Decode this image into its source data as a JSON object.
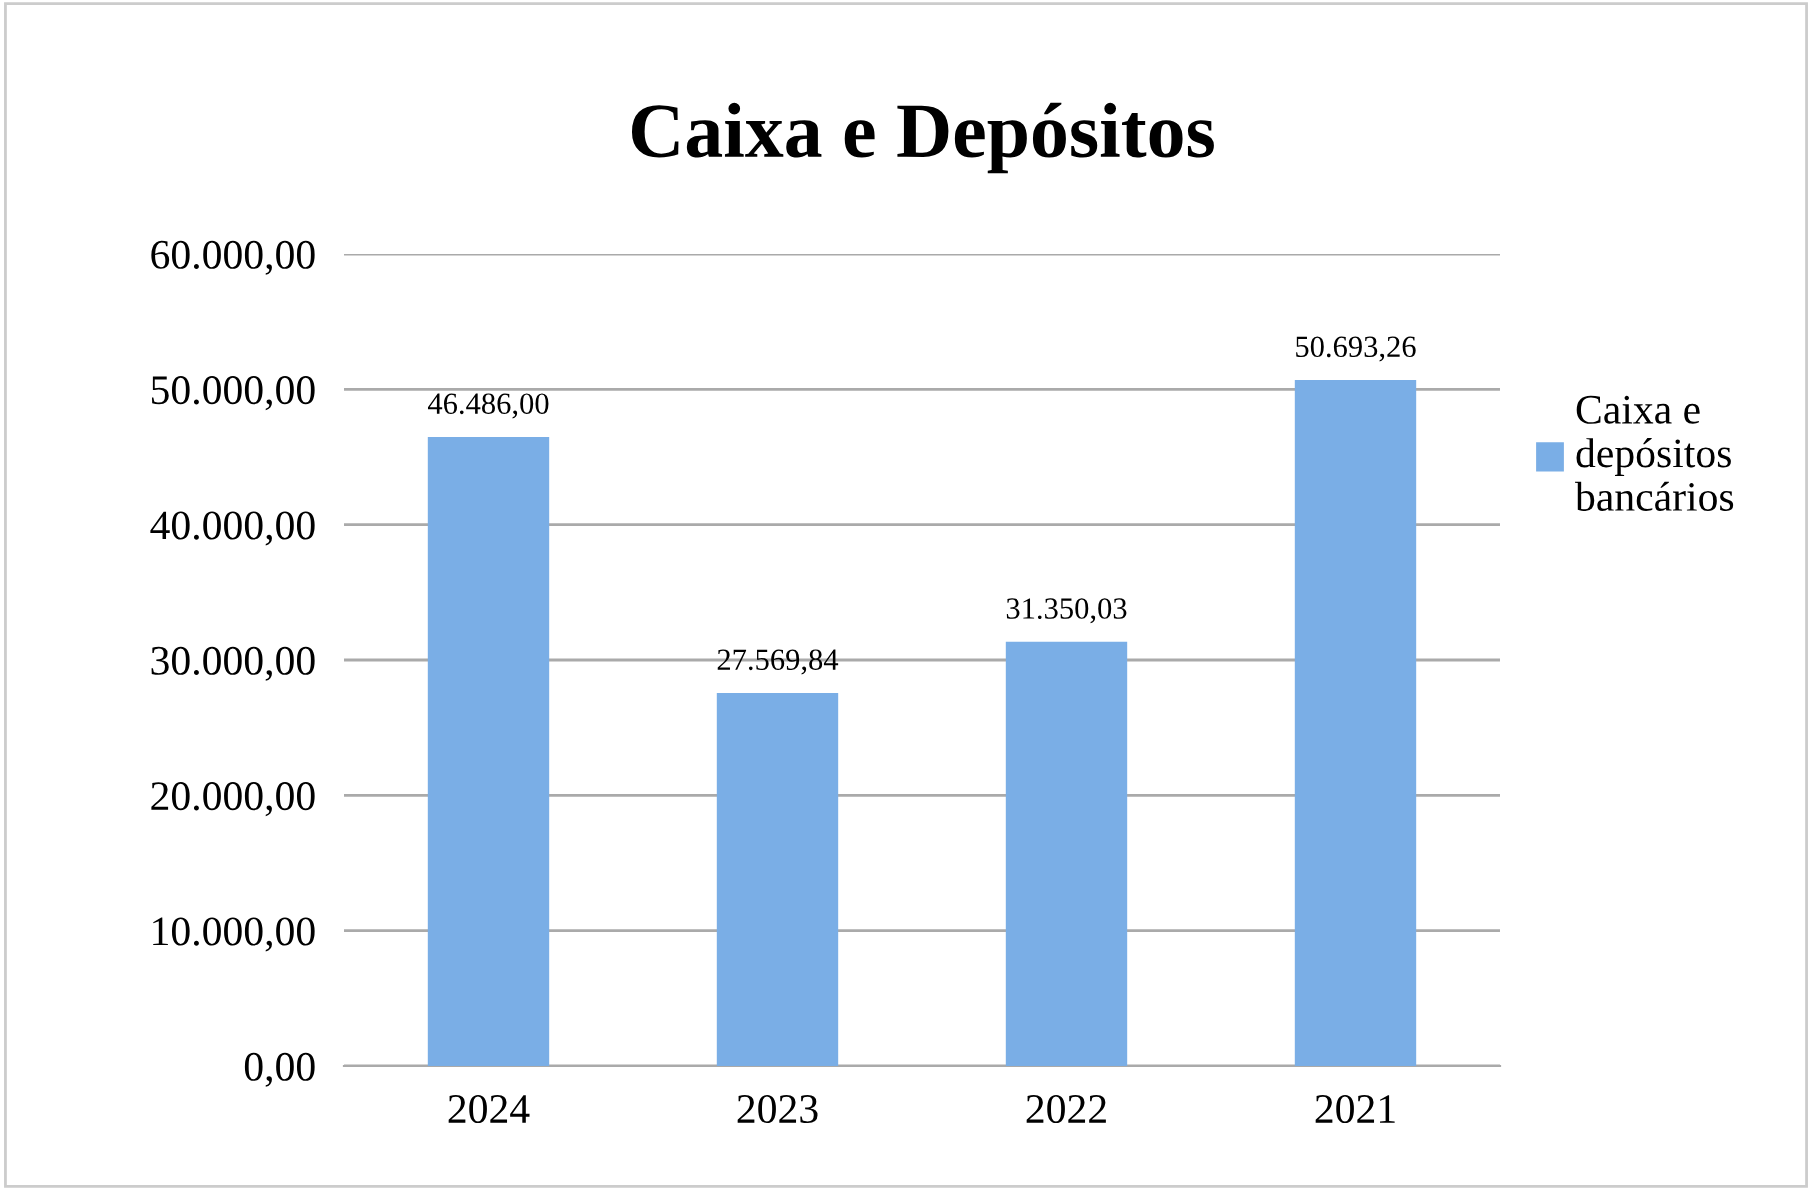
{
  "chart_data": {
    "type": "bar",
    "title": "Caixa e Depósitos",
    "categories": [
      "2024",
      "2023",
      "2022",
      "2021"
    ],
    "series": [
      {
        "name": "Caixa e depósitos bancários",
        "color": "#7aaee6",
        "values": [
          46486.0,
          27569.84,
          31350.03,
          50693.26
        ]
      }
    ],
    "value_labels": [
      "46.486,00",
      "27.569,84",
      "31.350,03",
      "50.693,26"
    ],
    "ylim": [
      0,
      60000
    ],
    "yticks": [
      {
        "value": 0,
        "label": "0,00"
      },
      {
        "value": 10000,
        "label": "10.000,00"
      },
      {
        "value": 20000,
        "label": "20.000,00"
      },
      {
        "value": 30000,
        "label": "30.000,00"
      },
      {
        "value": 40000,
        "label": "40.000,00"
      },
      {
        "value": 50000,
        "label": "50.000,00"
      },
      {
        "value": 60000,
        "label": "60.000,00"
      }
    ],
    "grid": "y",
    "legend": "right"
  }
}
